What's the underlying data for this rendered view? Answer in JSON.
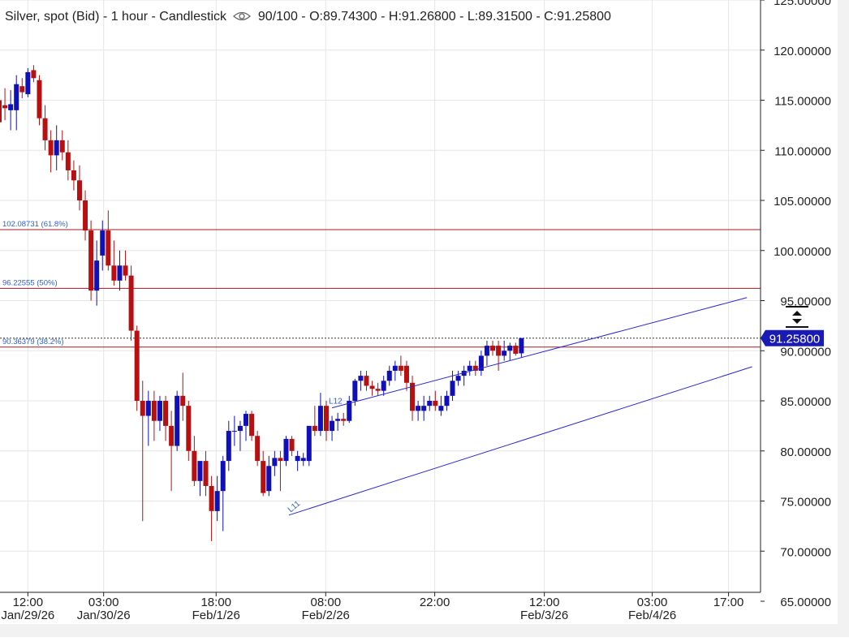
{
  "header": {
    "title": "Silver, spot (Bid) - 1 hour - Candlestick",
    "zoom": "90/100",
    "ohlc": "O:89.74300 - H:91.26800 - L:89.31500 - C:91.25800",
    "eye_icon": "eye-icon"
  },
  "colors": {
    "up": "#1010b8",
    "down": "#b81010",
    "grid": "#e6e6e6",
    "fib_line": "#a51c1c",
    "fib_label": "#2f5fd0",
    "channel": "#2828d8",
    "price_tag_bg": "#1a1ab4"
  },
  "chart_data": {
    "type": "candlestick",
    "title": "Silver, spot (Bid) - 1 hour - Candlestick",
    "ylim": [
      65,
      125
    ],
    "y_ticks": [
      "125.00000",
      "120.00000",
      "115.00000",
      "110.00000",
      "105.00000",
      "100.00000",
      "95.00000",
      "90.00000",
      "85.00000",
      "80.00000",
      "75.00000",
      "70.00000",
      "65.00000"
    ],
    "y_tick_values": [
      125,
      120,
      115,
      110,
      105,
      100,
      95,
      90,
      85,
      80,
      75,
      70,
      65
    ],
    "x_ticks": [
      {
        "bar": 5,
        "time": "12:00",
        "date": "Jan/29/26"
      },
      {
        "bar": 18.2,
        "time": "03:00",
        "date": "Jan/30/26"
      },
      {
        "bar": 37.8,
        "time": "18:00",
        "date": "Feb/1/26"
      },
      {
        "bar": 56.9,
        "time": "08:00",
        "date": "Feb/2/26"
      },
      {
        "bar": 75.9,
        "time": "22:00",
        "date": ""
      },
      {
        "bar": 95,
        "time": "12:00",
        "date": "Feb/3/26"
      },
      {
        "bar": 113.8,
        "time": "03:00",
        "date": "Feb/4/26"
      },
      {
        "bar": 127.1,
        "time": "17:00",
        "date": ""
      }
    ],
    "candles": [
      {
        "o": 115.0,
        "h": 115.9,
        "l": 112.0,
        "c": 112.8
      },
      {
        "o": 114.5,
        "h": 116.2,
        "l": 113.0,
        "c": 114.2
      },
      {
        "o": 114.0,
        "h": 116.0,
        "l": 112.0,
        "c": 114.6
      },
      {
        "o": 114.0,
        "h": 117.5,
        "l": 112.0,
        "c": 116.6
      },
      {
        "o": 116.4,
        "h": 117.2,
        "l": 115.2,
        "c": 115.8
      },
      {
        "o": 115.6,
        "h": 118.2,
        "l": 115.3,
        "c": 117.8
      },
      {
        "o": 118.0,
        "h": 118.5,
        "l": 116.8,
        "c": 117.2
      },
      {
        "o": 117.0,
        "h": 117.5,
        "l": 112.5,
        "c": 113.2
      },
      {
        "o": 113.2,
        "h": 114.5,
        "l": 110.0,
        "c": 111.0
      },
      {
        "o": 111.0,
        "h": 112.0,
        "l": 107.8,
        "c": 109.5
      },
      {
        "o": 109.5,
        "h": 112.5,
        "l": 108.0,
        "c": 111.0
      },
      {
        "o": 111.0,
        "h": 112.0,
        "l": 109.0,
        "c": 109.8
      },
      {
        "o": 109.8,
        "h": 111.0,
        "l": 107.0,
        "c": 108.0
      },
      {
        "o": 108.0,
        "h": 109.0,
        "l": 106.0,
        "c": 107.0
      },
      {
        "o": 107.0,
        "h": 108.5,
        "l": 104.0,
        "c": 105.0
      },
      {
        "o": 105.0,
        "h": 106.0,
        "l": 101.0,
        "c": 102.0
      },
      {
        "o": 102.0,
        "h": 103.0,
        "l": 95.0,
        "c": 96.0
      },
      {
        "o": 96.0,
        "h": 101.0,
        "l": 94.5,
        "c": 99.0
      },
      {
        "o": 99.5,
        "h": 103.0,
        "l": 98.0,
        "c": 102.0
      },
      {
        "o": 102.0,
        "h": 104.0,
        "l": 98.0,
        "c": 98.5
      },
      {
        "o": 98.5,
        "h": 101.0,
        "l": 96.5,
        "c": 97.0
      },
      {
        "o": 97.0,
        "h": 100.0,
        "l": 96.0,
        "c": 98.5
      },
      {
        "o": 98.5,
        "h": 100.0,
        "l": 97.0,
        "c": 97.5
      },
      {
        "o": 97.5,
        "h": 98.5,
        "l": 91.0,
        "c": 92.0
      },
      {
        "o": 92.0,
        "h": 92.5,
        "l": 84.0,
        "c": 85.0
      },
      {
        "o": 85.0,
        "h": 87.0,
        "l": 73.0,
        "c": 83.5
      },
      {
        "o": 83.5,
        "h": 86.0,
        "l": 80.5,
        "c": 85.0
      },
      {
        "o": 85.0,
        "h": 86.0,
        "l": 81.0,
        "c": 83.0
      },
      {
        "o": 83.0,
        "h": 85.5,
        "l": 82.0,
        "c": 85.0
      },
      {
        "o": 85.0,
        "h": 85.5,
        "l": 81.0,
        "c": 82.5
      },
      {
        "o": 82.5,
        "h": 84.0,
        "l": 76.0,
        "c": 80.5
      },
      {
        "o": 80.5,
        "h": 86.0,
        "l": 80.0,
        "c": 85.5
      },
      {
        "o": 85.5,
        "h": 87.8,
        "l": 83.0,
        "c": 84.5
      },
      {
        "o": 84.5,
        "h": 85.0,
        "l": 79.0,
        "c": 80.0
      },
      {
        "o": 80.0,
        "h": 81.5,
        "l": 76.5,
        "c": 77.0
      },
      {
        "o": 77.0,
        "h": 78.5,
        "l": 75.5,
        "c": 79.0
      },
      {
        "o": 79.0,
        "h": 80.0,
        "l": 75.5,
        "c": 76.5
      },
      {
        "o": 76.5,
        "h": 77.5,
        "l": 71.0,
        "c": 74.0
      },
      {
        "o": 74.0,
        "h": 77.5,
        "l": 73.0,
        "c": 76.0
      },
      {
        "o": 76.0,
        "h": 79.5,
        "l": 72.0,
        "c": 79.0
      },
      {
        "o": 79.0,
        "h": 83.0,
        "l": 78.0,
        "c": 82.0
      },
      {
        "o": 82.0,
        "h": 83.5,
        "l": 80.5,
        "c": 82.0
      },
      {
        "o": 82.0,
        "h": 83.0,
        "l": 80.0,
        "c": 82.5
      },
      {
        "o": 82.5,
        "h": 84.0,
        "l": 81.0,
        "c": 83.7
      },
      {
        "o": 83.7,
        "h": 84.0,
        "l": 81.0,
        "c": 81.5
      },
      {
        "o": 81.5,
        "h": 82.0,
        "l": 78.5,
        "c": 79.0
      },
      {
        "o": 79.0,
        "h": 80.0,
        "l": 75.5,
        "c": 75.8
      },
      {
        "o": 76.0,
        "h": 79.5,
        "l": 75.5,
        "c": 78.5
      },
      {
        "o": 78.5,
        "h": 80.0,
        "l": 77.5,
        "c": 79.3
      },
      {
        "o": 79.3,
        "h": 80.0,
        "l": 76.0,
        "c": 79.0
      },
      {
        "o": 79.0,
        "h": 81.5,
        "l": 78.5,
        "c": 81.2
      },
      {
        "o": 81.2,
        "h": 81.5,
        "l": 79.5,
        "c": 80.0
      },
      {
        "o": 79.0,
        "h": 80.0,
        "l": 78.0,
        "c": 79.5
      },
      {
        "o": 79.0,
        "h": 79.8,
        "l": 78.5,
        "c": 79.3
      },
      {
        "o": 79.0,
        "h": 82.5,
        "l": 78.5,
        "c": 82.5
      },
      {
        "o": 82.5,
        "h": 84.5,
        "l": 81.5,
        "c": 82.0
      },
      {
        "o": 82.0,
        "h": 85.8,
        "l": 81.5,
        "c": 84.5
      },
      {
        "o": 84.5,
        "h": 85.0,
        "l": 81.0,
        "c": 82.0
      },
      {
        "o": 82.0,
        "h": 83.5,
        "l": 81.0,
        "c": 83.0
      },
      {
        "o": 83.0,
        "h": 83.8,
        "l": 82.0,
        "c": 83.2
      },
      {
        "o": 83.2,
        "h": 83.8,
        "l": 82.5,
        "c": 83.0
      },
      {
        "o": 83.0,
        "h": 85.5,
        "l": 82.8,
        "c": 85.0
      },
      {
        "o": 85.0,
        "h": 87.2,
        "l": 84.5,
        "c": 87.0
      },
      {
        "o": 87.0,
        "h": 88.0,
        "l": 86.0,
        "c": 87.5
      },
      {
        "o": 87.5,
        "h": 88.0,
        "l": 86.0,
        "c": 86.5
      },
      {
        "o": 86.5,
        "h": 87.0,
        "l": 85.5,
        "c": 86.2
      },
      {
        "o": 86.2,
        "h": 86.8,
        "l": 85.5,
        "c": 86.0
      },
      {
        "o": 86.0,
        "h": 87.5,
        "l": 85.5,
        "c": 87.0
      },
      {
        "o": 87.0,
        "h": 88.5,
        "l": 86.5,
        "c": 88.0
      },
      {
        "o": 88.0,
        "h": 89.0,
        "l": 87.0,
        "c": 88.5
      },
      {
        "o": 88.5,
        "h": 89.5,
        "l": 87.5,
        "c": 88.0
      },
      {
        "o": 88.5,
        "h": 89.0,
        "l": 86.0,
        "c": 86.8
      },
      {
        "o": 86.8,
        "h": 87.5,
        "l": 83.0,
        "c": 84.0
      },
      {
        "o": 84.0,
        "h": 85.0,
        "l": 83.0,
        "c": 84.5
      },
      {
        "o": 84.0,
        "h": 85.5,
        "l": 83.0,
        "c": 84.5
      },
      {
        "o": 84.5,
        "h": 85.5,
        "l": 84.0,
        "c": 85.0
      },
      {
        "o": 85.0,
        "h": 86.0,
        "l": 84.0,
        "c": 84.5
      },
      {
        "o": 84.0,
        "h": 85.5,
        "l": 83.5,
        "c": 84.5
      },
      {
        "o": 84.5,
        "h": 86.0,
        "l": 84.0,
        "c": 85.5
      },
      {
        "o": 85.5,
        "h": 88.0,
        "l": 85.0,
        "c": 87.0
      },
      {
        "o": 87.0,
        "h": 88.0,
        "l": 86.5,
        "c": 87.5
      },
      {
        "o": 87.5,
        "h": 88.5,
        "l": 86.5,
        "c": 88.0
      },
      {
        "o": 88.0,
        "h": 89.0,
        "l": 87.5,
        "c": 88.5
      },
      {
        "o": 88.5,
        "h": 89.0,
        "l": 87.5,
        "c": 88.0
      },
      {
        "o": 88.0,
        "h": 90.0,
        "l": 87.5,
        "c": 89.5
      },
      {
        "o": 89.5,
        "h": 91.0,
        "l": 88.5,
        "c": 90.5
      },
      {
        "o": 90.5,
        "h": 91.0,
        "l": 89.5,
        "c": 90.0
      },
      {
        "o": 90.5,
        "h": 91.0,
        "l": 88.0,
        "c": 89.5
      },
      {
        "o": 89.5,
        "h": 91.0,
        "l": 89.0,
        "c": 90.0
      },
      {
        "o": 90.0,
        "h": 90.8,
        "l": 89.0,
        "c": 90.5
      },
      {
        "o": 90.5,
        "h": 90.8,
        "l": 89.5,
        "c": 89.7
      },
      {
        "o": 89.743,
        "h": 91.268,
        "l": 89.315,
        "c": 91.258
      }
    ],
    "fib_levels": [
      {
        "value": 102.08731,
        "label": "102.08731 (61.8%)"
      },
      {
        "value": 96.22555,
        "label": "96.22555 (50%)"
      },
      {
        "value": 90.36379,
        "label": "90.36379 (38.2%)"
      }
    ],
    "channel": {
      "upper": {
        "x1": 58.0,
        "y1": 84.3,
        "x2": 130.3,
        "y2": 95.3
      },
      "lower": {
        "x1": 50.5,
        "y1": 73.6,
        "x2": 131.2,
        "y2": 88.4
      },
      "label_upper": "L12",
      "label_lower": "L11"
    },
    "last_price": 91.258,
    "last_price_label": "91.25800"
  }
}
